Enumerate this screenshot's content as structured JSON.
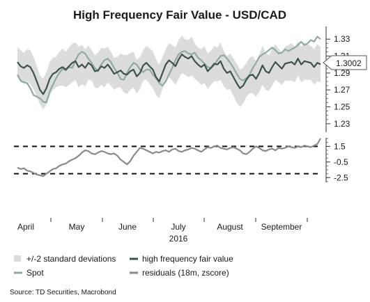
{
  "chart_data": [
    {
      "type": "line",
      "title": "High Frequency Fair Value - USD/CAD",
      "ylim": [
        1.22,
        1.345
      ],
      "y_ticks": [
        "1.33",
        "1.31",
        "1.29",
        "1.27",
        "1.25",
        "1.23"
      ],
      "y_tick_values": [
        1.33,
        1.31,
        1.29,
        1.27,
        1.25,
        1.23
      ],
      "last_value_label": "1.3002",
      "last_value": 1.3002,
      "x_axis": {
        "year": "2016",
        "month_labels": [
          "April",
          "May",
          "June",
          "July",
          "August",
          "September"
        ]
      },
      "series": [
        {
          "name": "Spot",
          "color": "#8fab9c",
          "values": [
            1.288,
            1.281,
            1.279,
            1.278,
            1.272,
            1.264,
            1.262,
            1.26,
            1.256,
            1.255,
            1.268,
            1.276,
            1.284,
            1.29,
            1.295,
            1.293,
            1.297,
            1.296,
            1.305,
            1.312,
            1.315,
            1.313,
            1.307,
            1.302,
            1.296,
            1.292,
            1.3,
            1.305,
            1.307,
            1.303,
            1.296,
            1.29,
            1.283,
            1.282,
            1.29,
            1.297,
            1.302,
            1.3,
            1.294,
            1.291,
            1.294,
            1.294,
            1.288,
            1.284,
            1.278,
            1.275,
            1.28,
            1.288,
            1.296,
            1.305,
            1.312,
            1.315,
            1.316,
            1.313,
            1.312,
            1.314,
            1.308,
            1.305,
            1.301,
            1.297,
            1.296,
            1.299,
            1.305,
            1.31,
            1.311,
            1.307,
            1.302,
            1.296,
            1.289,
            1.283,
            1.281,
            1.284,
            1.288,
            1.296,
            1.302,
            1.309,
            1.312,
            1.314,
            1.317,
            1.32,
            1.317,
            1.313,
            1.314,
            1.318,
            1.316,
            1.318,
            1.32,
            1.323,
            1.327,
            1.323,
            1.325,
            1.329,
            1.327,
            1.333,
            1.33
          ]
        },
        {
          "name": "high frequency fair value",
          "color": "#3c5248",
          "values": [
            1.303,
            1.298,
            1.296,
            1.299,
            1.297,
            1.29,
            1.28,
            1.27,
            1.265,
            1.272,
            1.283,
            1.289,
            1.291,
            1.295,
            1.297,
            1.294,
            1.298,
            1.302,
            1.304,
            1.297,
            1.3,
            1.296,
            1.302,
            1.299,
            1.292,
            1.293,
            1.298,
            1.296,
            1.3,
            1.295,
            1.289,
            1.291,
            1.293,
            1.289,
            1.288,
            1.292,
            1.294,
            1.286,
            1.29,
            1.299,
            1.302,
            1.298,
            1.294,
            1.285,
            1.28,
            1.29,
            1.3,
            1.305,
            1.302,
            1.298,
            1.306,
            1.312,
            1.309,
            1.307,
            1.31,
            1.304,
            1.3,
            1.297,
            1.3,
            1.292,
            1.296,
            1.301,
            1.3,
            1.304,
            1.295,
            1.29,
            1.292,
            1.285,
            1.278,
            1.272,
            1.275,
            1.282,
            1.287,
            1.288,
            1.283,
            1.29,
            1.299,
            1.292,
            1.29,
            1.297,
            1.303,
            1.299,
            1.295,
            1.301,
            1.302,
            1.303,
            1.3,
            1.307,
            1.3,
            1.304,
            1.303,
            1.302,
            1.297,
            1.302,
            1.3002
          ]
        }
      ],
      "band": {
        "name": "+/-2 standard deviations",
        "color": "#dcdcdc",
        "half_width": [
          0.018,
          0.019,
          0.018,
          0.019,
          0.02,
          0.019,
          0.018,
          0.017,
          0.018,
          0.019,
          0.02,
          0.019,
          0.018,
          0.02,
          0.022,
          0.021,
          0.022,
          0.023,
          0.022,
          0.024,
          0.023,
          0.022,
          0.02,
          0.018,
          0.019,
          0.021,
          0.022,
          0.023,
          0.021,
          0.02,
          0.019,
          0.018,
          0.02,
          0.022,
          0.023,
          0.022,
          0.021,
          0.02,
          0.019,
          0.018,
          0.02,
          0.021,
          0.022,
          0.021,
          0.02,
          0.019,
          0.018,
          0.02,
          0.021,
          0.022,
          0.023,
          0.022,
          0.021,
          0.022,
          0.023,
          0.021,
          0.02,
          0.021,
          0.022,
          0.021,
          0.02,
          0.021,
          0.02,
          0.022,
          0.021,
          0.02,
          0.021,
          0.022,
          0.023,
          0.022,
          0.021,
          0.02,
          0.021,
          0.022,
          0.021,
          0.022,
          0.023,
          0.022,
          0.021,
          0.022,
          0.021,
          0.02,
          0.019,
          0.02,
          0.021,
          0.022,
          0.021,
          0.02,
          0.021,
          0.022,
          0.021,
          0.02,
          0.021,
          0.022,
          0.021
        ]
      }
    },
    {
      "type": "line",
      "ylim": [
        -3.1,
        2.6
      ],
      "y_ticks": [
        "1.5",
        "-0.5",
        "-2.5"
      ],
      "y_tick_values": [
        1.5,
        -0.5,
        -2.5
      ],
      "reference_lines": [
        1.5,
        -2.0
      ],
      "series": [
        {
          "name": "residuals (18m, zscore)",
          "color": "#8a8a8a",
          "values": [
            -1.2,
            -1.4,
            -1.3,
            -1.6,
            -1.7,
            -1.9,
            -2.1,
            -2.2,
            -2.3,
            -2.0,
            -1.7,
            -1.4,
            -1.3,
            -1.0,
            -0.8,
            -0.7,
            -0.4,
            -0.2,
            0.0,
            0.3,
            0.7,
            1.0,
            0.9,
            0.6,
            0.5,
            0.7,
            0.9,
            0.8,
            0.6,
            0.5,
            0.6,
            0.3,
            -0.2,
            -0.5,
            -0.8,
            -0.4,
            0.3,
            0.8,
            1.3,
            1.2,
            1.0,
            0.8,
            0.6,
            0.8,
            0.7,
            0.9,
            1.0,
            0.8,
            1.1,
            1.2,
            0.9,
            0.8,
            1.0,
            1.1,
            1.3,
            1.2,
            1.0,
            0.8,
            1.1,
            1.4,
            1.3,
            1.5,
            1.6,
            1.3,
            1.2,
            1.1,
            1.3,
            1.4,
            1.2,
            1.0,
            0.6,
            0.5,
            0.8,
            1.2,
            1.5,
            1.3,
            1.0,
            0.9,
            1.1,
            1.2,
            1.0,
            1.3,
            1.2,
            1.3,
            1.5,
            1.4,
            1.3,
            1.5,
            1.4,
            1.6,
            1.5,
            1.4,
            1.6,
            1.8,
            2.5
          ]
        }
      ]
    }
  ],
  "legend": {
    "items": [
      {
        "label": "+/-2 standard deviations",
        "kind": "band",
        "color": "#dcdcdc"
      },
      {
        "label": "high frequency fair value",
        "kind": "line",
        "color": "#3c5248"
      },
      {
        "label": "Spot",
        "kind": "line",
        "color": "#8fab9c"
      },
      {
        "label": "residuals (18m, zscore)",
        "kind": "line",
        "color": "#8a8a8a"
      }
    ]
  },
  "source": "Source: TD Securities, Macrobond"
}
